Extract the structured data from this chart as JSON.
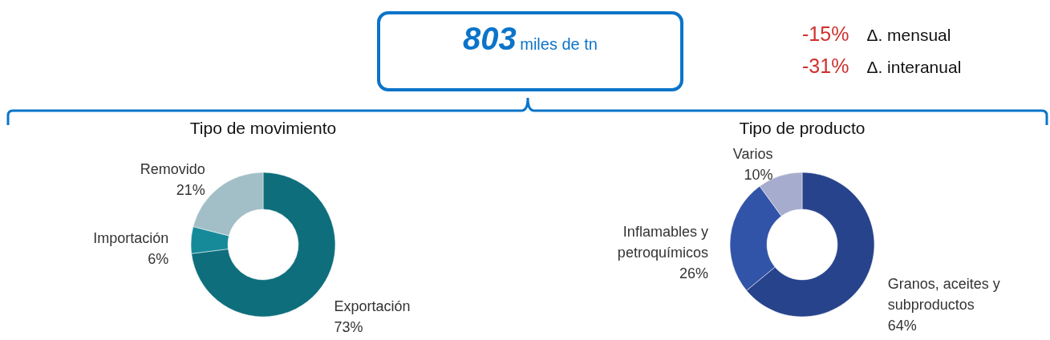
{
  "chart_data": [
    {
      "type": "other",
      "annotations": [
        "803",
        "miles de tn",
        "-15%",
        "Δ. mensual",
        "-31%",
        "Δ. interanual"
      ]
    },
    {
      "type": "donut",
      "title": "Tipo de movimiento",
      "categories": [
        "Exportación",
        "Importación",
        "Removido"
      ],
      "values": [
        73,
        6,
        21
      ],
      "colors": [
        "#0e6e7c",
        "#178a9a",
        "#a2bec6"
      ],
      "value_labels": [
        "73%",
        "6%",
        "21%"
      ]
    },
    {
      "type": "donut",
      "title": "Tipo de producto",
      "categories": [
        "Granos, aceites y subproductos",
        "Inflamables y petroquímicos",
        "Varios"
      ],
      "values": [
        64,
        26,
        10
      ],
      "colors": [
        "#27438b",
        "#3254a8",
        "#a6acce"
      ],
      "value_labels": [
        "64%",
        "26%",
        "10%"
      ]
    }
  ]
}
